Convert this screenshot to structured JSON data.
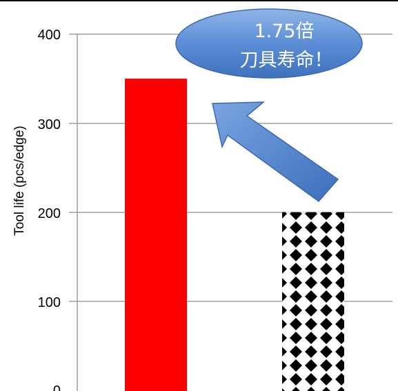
{
  "chart_data": {
    "type": "bar",
    "categories": [
      "",
      ""
    ],
    "values": [
      350,
      200
    ],
    "ylabel": "Tool life (pcs/edge)",
    "ylim": [
      0,
      400
    ],
    "yticks": [
      0,
      100,
      200,
      300,
      400
    ],
    "ytick_labels": [
      "0",
      "100",
      "200",
      "300",
      "400"
    ],
    "grid": true,
    "bar_styles": [
      "solid-red",
      "black-diamond-pattern"
    ],
    "annotation": {
      "line1": "1.75倍",
      "line2": "刀具寿命！"
    },
    "colors": {
      "bar1": "#ff0000",
      "pattern_dark": "#000000",
      "pattern_light": "#ffffff",
      "gridline": "#8c8c8c",
      "callout_fill": "#5b8ed6",
      "arrow_fill": "#4f86d2"
    }
  }
}
